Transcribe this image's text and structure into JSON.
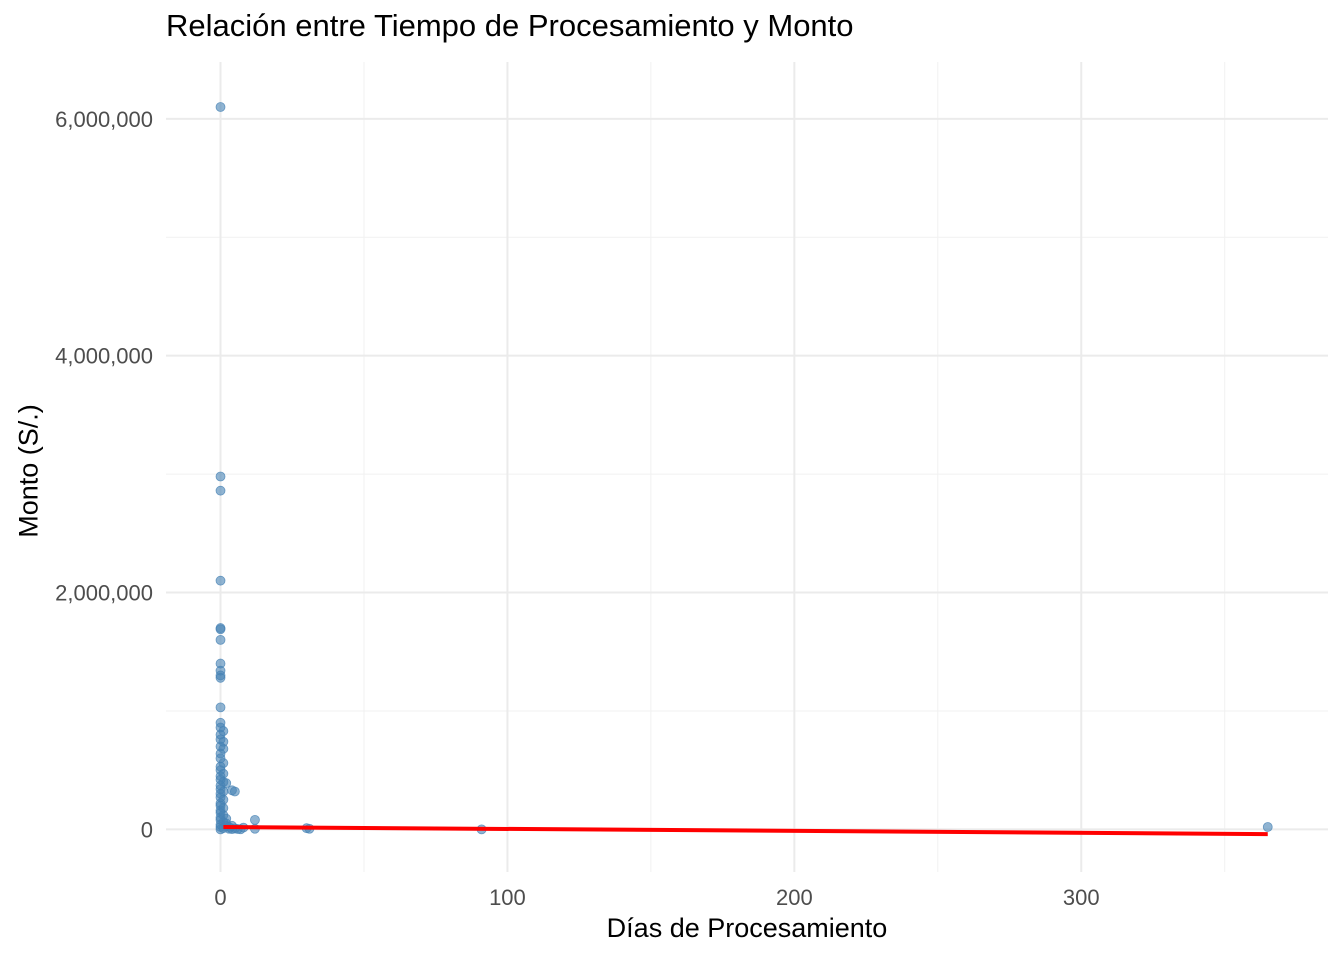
{
  "chart_data": {
    "type": "scatter",
    "title": "Relación entre Tiempo de Procesamiento y Monto",
    "xlabel": "Días de Procesamiento",
    "ylabel": "Monto (S/.)",
    "xlim": [
      -19,
      386
    ],
    "ylim": [
      -360000,
      6480000
    ],
    "x_ticks": [
      0,
      100,
      200,
      300
    ],
    "x_tick_labels": [
      "0",
      "100",
      "200",
      "300"
    ],
    "y_ticks": [
      0,
      2000000,
      4000000,
      6000000
    ],
    "y_tick_labels": [
      "0",
      "2,000,000",
      "4,000,000",
      "6,000,000"
    ],
    "grid": true,
    "point_color": "#4682b4",
    "fit_color": "#ff0000",
    "points": [
      {
        "x": 0,
        "y": 6100000
      },
      {
        "x": 0,
        "y": 2980000
      },
      {
        "x": 0,
        "y": 2860000
      },
      {
        "x": 0,
        "y": 2100000
      },
      {
        "x": 0,
        "y": 1700000
      },
      {
        "x": 0,
        "y": 1690000
      },
      {
        "x": 0,
        "y": 1600000
      },
      {
        "x": 0,
        "y": 1400000
      },
      {
        "x": 0,
        "y": 1340000
      },
      {
        "x": 0,
        "y": 1300000
      },
      {
        "x": 0,
        "y": 1280000
      },
      {
        "x": 0,
        "y": 1030000
      },
      {
        "x": 0,
        "y": 900000
      },
      {
        "x": 0,
        "y": 860000
      },
      {
        "x": 1,
        "y": 830000
      },
      {
        "x": 0,
        "y": 800000
      },
      {
        "x": 0,
        "y": 760000
      },
      {
        "x": 1,
        "y": 740000
      },
      {
        "x": 0,
        "y": 700000
      },
      {
        "x": 1,
        "y": 680000
      },
      {
        "x": 0,
        "y": 640000
      },
      {
        "x": 0,
        "y": 600000
      },
      {
        "x": 1,
        "y": 560000
      },
      {
        "x": 0,
        "y": 530000
      },
      {
        "x": 0,
        "y": 500000
      },
      {
        "x": 1,
        "y": 470000
      },
      {
        "x": 0,
        "y": 450000
      },
      {
        "x": 0,
        "y": 420000
      },
      {
        "x": 1,
        "y": 400000
      },
      {
        "x": 2,
        "y": 390000
      },
      {
        "x": 0,
        "y": 370000
      },
      {
        "x": 0,
        "y": 340000
      },
      {
        "x": 1,
        "y": 320000
      },
      {
        "x": 0,
        "y": 300000
      },
      {
        "x": 0,
        "y": 270000
      },
      {
        "x": 1,
        "y": 250000
      },
      {
        "x": 0,
        "y": 220000
      },
      {
        "x": 0,
        "y": 200000
      },
      {
        "x": 1,
        "y": 180000
      },
      {
        "x": 0,
        "y": 160000
      },
      {
        "x": 0,
        "y": 140000
      },
      {
        "x": 1,
        "y": 120000
      },
      {
        "x": 0,
        "y": 100000
      },
      {
        "x": 2,
        "y": 90000
      },
      {
        "x": 0,
        "y": 80000
      },
      {
        "x": 1,
        "y": 60000
      },
      {
        "x": 0,
        "y": 40000
      },
      {
        "x": 2,
        "y": 30000
      },
      {
        "x": 0,
        "y": 20000
      },
      {
        "x": 1,
        "y": 10000
      },
      {
        "x": 0,
        "y": 0
      },
      {
        "x": 3,
        "y": 5000
      },
      {
        "x": 4,
        "y": 2000
      },
      {
        "x": 5,
        "y": 8000
      },
      {
        "x": 6,
        "y": 3000
      },
      {
        "x": 7,
        "y": 1000
      },
      {
        "x": 8,
        "y": 15000
      },
      {
        "x": 2,
        "y": 50000
      },
      {
        "x": 3,
        "y": 20000
      },
      {
        "x": 4,
        "y": 30000
      },
      {
        "x": 4,
        "y": 330000
      },
      {
        "x": 5,
        "y": 320000
      },
      {
        "x": 12,
        "y": 80000
      },
      {
        "x": 12,
        "y": 5000
      },
      {
        "x": 30,
        "y": 10000
      },
      {
        "x": 31,
        "y": 5000
      },
      {
        "x": 91,
        "y": 0
      },
      {
        "x": 365,
        "y": 20000
      }
    ],
    "fit_line": {
      "x": [
        1,
        365
      ],
      "y": [
        20000,
        -40000
      ]
    }
  }
}
